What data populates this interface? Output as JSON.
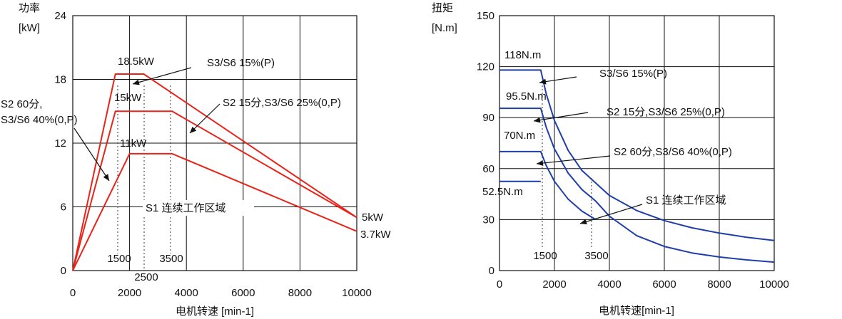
{
  "chart_data": [
    {
      "type": "line",
      "ylabel_lines": [
        "功率",
        "[kW]"
      ],
      "xlabel": "电机转速 [min-1]",
      "xlim": [
        0,
        10000
      ],
      "ylim": [
        0,
        24
      ],
      "x_ticks": [
        0,
        2000,
        4000,
        6000,
        8000,
        10000
      ],
      "x_tick_labels": [
        "0",
        "2000",
        "4000",
        "6000",
        "8000",
        "10000"
      ],
      "y_ticks": [
        0,
        6,
        12,
        18,
        24
      ],
      "y_tick_labels": [
        "0",
        "6",
        "12",
        "18",
        "24"
      ],
      "grid": true,
      "line_color": "#e8231a",
      "series": [
        {
          "x": [
            0,
            1500,
            2500,
            10000
          ],
          "y": [
            0,
            18.5,
            18.5,
            5
          ]
        },
        {
          "x": [
            0,
            1500,
            3500,
            10000
          ],
          "y": [
            0,
            15,
            15,
            5
          ]
        },
        {
          "x": [
            0,
            2000,
            3500,
            10000
          ],
          "y": [
            0,
            11,
            11,
            3.7
          ]
        }
      ],
      "ref_markers": [
        {
          "x": 1500,
          "y": 15,
          "label": "1500"
        },
        {
          "x": 2500,
          "y": 15,
          "label": "2500"
        },
        {
          "x": 3500,
          "y": 15,
          "label": "3500"
        }
      ],
      "annotations": [
        {
          "id": "a1",
          "text": "18.5kW"
        },
        {
          "id": "a2",
          "text": "15kW"
        },
        {
          "id": "a3",
          "text": "11kW"
        },
        {
          "id": "a4",
          "text": "S3/S6 15%(P)"
        },
        {
          "id": "a5",
          "text": "S2 15分,S3/S6 25%(0,P)"
        },
        {
          "id": "a6",
          "text": "S2 60分,"
        },
        {
          "id": "a7",
          "text": "S3/S6 40%(0,P)"
        },
        {
          "id": "a8",
          "text": "S1 连续工作区域"
        },
        {
          "id": "a9",
          "text": "5kW"
        },
        {
          "id": "a10",
          "text": "3.7kW"
        }
      ]
    },
    {
      "type": "line",
      "ylabel_lines": [
        "扭矩",
        "[N.m]"
      ],
      "xlabel": "电机转速[min-1]",
      "xlim": [
        0,
        10000
      ],
      "ylim": [
        0,
        150
      ],
      "x_ticks": [
        0,
        2000,
        4000,
        6000,
        8000,
        10000
      ],
      "x_tick_labels": [
        "0",
        "2000",
        "4000",
        "6000",
        "8000",
        "10000"
      ],
      "y_ticks": [
        0,
        30,
        60,
        90,
        120,
        150
      ],
      "y_tick_labels": [
        "0",
        "30",
        "60",
        "90",
        "120",
        "150"
      ],
      "grid": true,
      "line_color": "#1f3ea8",
      "series": [
        {
          "x": [
            0,
            1500,
            1700,
            2000,
            2500,
            3000,
            4000,
            5000,
            6000,
            7000,
            8000,
            9000,
            10000
          ],
          "y": [
            118,
            118,
            104,
            88.3,
            70.7,
            58.9,
            44.2,
            35.3,
            29.4,
            25.2,
            22.1,
            19.6,
            17.7
          ]
        },
        {
          "x": [
            0,
            1500,
            1700,
            2000,
            2500,
            3000,
            3500,
            4000,
            5000,
            6000,
            7000,
            8000,
            9000,
            10000
          ],
          "y": [
            95.5,
            95.5,
            84.3,
            71.6,
            57.3,
            47.7,
            40.9,
            32.0,
            20.5,
            14.2,
            10.4,
            8.0,
            6.3,
            5.0
          ]
        },
        {
          "x": [
            0,
            1500,
            1700,
            2000,
            2500,
            3000,
            3500
          ],
          "y": [
            70,
            70,
            61.8,
            52.5,
            42.0,
            35.0,
            30.0
          ]
        },
        {
          "x": [
            0,
            1500
          ],
          "y": [
            52.5,
            52.5
          ]
        }
      ],
      "ref_markers": [
        {
          "x": 1500,
          "y": 0,
          "label": "1500"
        },
        {
          "x": 3500,
          "y": 0,
          "label": "3500"
        }
      ],
      "annotations": [
        {
          "id": "b1",
          "text": "118N.m"
        },
        {
          "id": "b2",
          "text": "95.5N.m"
        },
        {
          "id": "b3",
          "text": "70N.m"
        },
        {
          "id": "b4",
          "text": "52.5N.m"
        },
        {
          "id": "b5",
          "text": "S3/S6 15%(P)"
        },
        {
          "id": "b6",
          "text": "S2 15分,S3/S6 25%(0,P)"
        },
        {
          "id": "b7",
          "text": "S2 60分,S3/S6 40%(0,P)"
        },
        {
          "id": "b8",
          "text": "S1 连续工作区域"
        }
      ]
    }
  ]
}
